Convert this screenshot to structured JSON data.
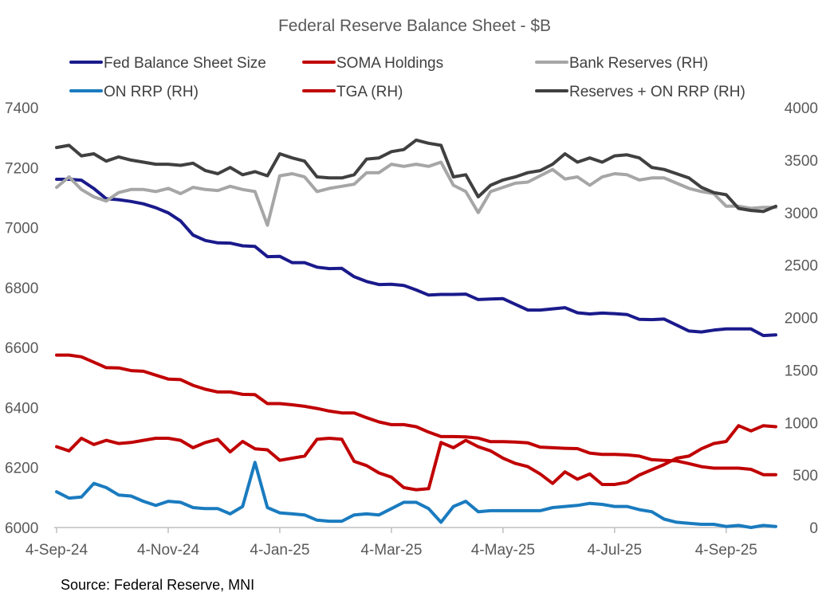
{
  "chart_data": {
    "type": "line",
    "title": "Federal Reserve Balance Sheet - $B",
    "source": "Source: Federal Reserve, MNI",
    "x_tick_labels": [
      "4-Sep-24",
      "4-Nov-24",
      "4-Jan-25",
      "4-Mar-25",
      "4-May-25",
      "4-Jul-25",
      "4-Sep-25"
    ],
    "x_tick_index": [
      0,
      9,
      18,
      27,
      36,
      45,
      54
    ],
    "ylim_left": [
      6000,
      7400
    ],
    "yticks_left": [
      "6000",
      "6200",
      "6400",
      "6600",
      "6800",
      "7000",
      "7200",
      "7400"
    ],
    "ylim_right": [
      0,
      4000
    ],
    "yticks_right": [
      "0",
      "500",
      "1000",
      "1500",
      "2000",
      "2500",
      "3000",
      "3500",
      "4000"
    ],
    "legend_position": "top",
    "series": [
      {
        "name": "Fed Balance Sheet Size",
        "axis": "left",
        "color": "#1a1a8c",
        "width": 4,
        "values": [
          7161,
          7161,
          7158,
          7130,
          7096,
          7093,
          7087,
          7079,
          7066,
          7049,
          7022,
          6975,
          6957,
          6949,
          6948,
          6939,
          6937,
          6903,
          6904,
          6883,
          6883,
          6868,
          6863,
          6864,
          6836,
          6820,
          6810,
          6811,
          6807,
          6792,
          6775,
          6777,
          6777,
          6778,
          6760,
          6762,
          6763,
          6744,
          6725,
          6725,
          6729,
          6733,
          6716,
          6712,
          6715,
          6713,
          6710,
          6694,
          6693,
          6695,
          6675,
          6655,
          6652,
          6658,
          6662,
          6662,
          6662,
          6640,
          6642
        ]
      },
      {
        "name": "SOMA Holdings",
        "axis": "left",
        "color": "#c00000",
        "width": 4,
        "values": [
          6575,
          6575,
          6569,
          6551,
          6533,
          6532,
          6523,
          6521,
          6508,
          6495,
          6493,
          6474,
          6461,
          6452,
          6452,
          6444,
          6443,
          6413,
          6413,
          6409,
          6404,
          6397,
          6388,
          6382,
          6382,
          6366,
          6352,
          6343,
          6343,
          6336,
          6318,
          6303,
          6303,
          6302,
          6298,
          6286,
          6286,
          6285,
          6282,
          6268,
          6266,
          6264,
          6263,
          6248,
          6244,
          6244,
          6242,
          6238,
          6226,
          6224,
          6222,
          6213,
          6203,
          6198,
          6198,
          6198,
          6194,
          6176,
          6176
        ]
      },
      {
        "name": "Bank Reserves (RH)",
        "axis": "right",
        "color": "#a6a6a6",
        "width": 4,
        "values": [
          3240,
          3340,
          3220,
          3150,
          3110,
          3190,
          3220,
          3220,
          3200,
          3230,
          3180,
          3240,
          3220,
          3210,
          3250,
          3220,
          3200,
          2880,
          3350,
          3370,
          3340,
          3200,
          3230,
          3250,
          3270,
          3380,
          3380,
          3460,
          3440,
          3460,
          3440,
          3480,
          3260,
          3200,
          3000,
          3200,
          3240,
          3280,
          3290,
          3350,
          3410,
          3320,
          3340,
          3260,
          3340,
          3370,
          3360,
          3310,
          3330,
          3330,
          3280,
          3230,
          3200,
          3180,
          3060,
          3060,
          3040,
          3050,
          3050
        ]
      },
      {
        "name": "ON RRP (RH)",
        "axis": "right",
        "color": "#1a7bbf",
        "width": 4,
        "values": [
          340,
          280,
          290,
          420,
          380,
          310,
          300,
          250,
          210,
          250,
          240,
          190,
          180,
          180,
          130,
          200,
          620,
          190,
          140,
          130,
          120,
          70,
          60,
          60,
          120,
          130,
          120,
          180,
          240,
          240,
          180,
          50,
          200,
          250,
          150,
          160,
          160,
          160,
          160,
          160,
          190,
          200,
          210,
          230,
          220,
          200,
          200,
          170,
          150,
          80,
          50,
          40,
          30,
          30,
          10,
          20,
          0,
          20,
          10
        ]
      },
      {
        "name": "TGA (RH)",
        "axis": "right",
        "color": "#c00000",
        "width": 4,
        "values": [
          770,
          730,
          850,
          790,
          830,
          800,
          810,
          830,
          850,
          850,
          830,
          760,
          810,
          840,
          720,
          820,
          750,
          740,
          640,
          660,
          680,
          840,
          850,
          840,
          630,
          590,
          520,
          480,
          380,
          360,
          370,
          810,
          760,
          830,
          770,
          730,
          660,
          610,
          580,
          510,
          420,
          530,
          460,
          510,
          410,
          410,
          430,
          500,
          550,
          600,
          660,
          680,
          750,
          800,
          820,
          970,
          920,
          970,
          960
        ]
      },
      {
        "name": "Reserves + ON RRP (RH)",
        "axis": "right",
        "color": "#404040",
        "width": 4,
        "values": [
          3620,
          3640,
          3540,
          3560,
          3490,
          3530,
          3500,
          3480,
          3460,
          3460,
          3450,
          3470,
          3400,
          3370,
          3430,
          3360,
          3390,
          3350,
          3560,
          3520,
          3490,
          3340,
          3330,
          3330,
          3360,
          3510,
          3520,
          3580,
          3600,
          3690,
          3660,
          3640,
          3340,
          3360,
          3150,
          3260,
          3310,
          3340,
          3380,
          3400,
          3460,
          3560,
          3480,
          3520,
          3480,
          3540,
          3550,
          3520,
          3430,
          3410,
          3370,
          3330,
          3240,
          3190,
          3170,
          3040,
          3020,
          3010,
          3060
        ]
      }
    ]
  }
}
